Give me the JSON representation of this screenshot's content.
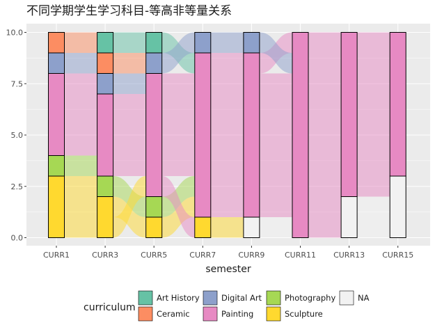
{
  "chart_data": {
    "type": "alluvial",
    "title": "不同学期学生学习科目-等高非等量关系",
    "xlabel": "semester",
    "ylabel": "",
    "ylim": [
      0,
      10
    ],
    "y_ticks": [
      0.0,
      2.5,
      5.0,
      7.5,
      10.0
    ],
    "y_tick_labels": [
      "0.0",
      "2.5",
      "5.0",
      "7.5",
      "10.0"
    ],
    "grid": true,
    "legend_position": "bottom",
    "legend_title": "curriculum",
    "categories": [
      "CURR1",
      "CURR3",
      "CURR5",
      "CURR7",
      "CURR9",
      "CURR11",
      "CURR13",
      "CURR15"
    ],
    "curricula": [
      {
        "name": "Art History",
        "color": "#66C2A5"
      },
      {
        "name": "Ceramic",
        "color": "#FC8D62"
      },
      {
        "name": "Digital Art",
        "color": "#8DA0CB"
      },
      {
        "name": "Painting",
        "color": "#E78AC3"
      },
      {
        "name": "Photography",
        "color": "#A6D854"
      },
      {
        "name": "Sculpture",
        "color": "#FFD92F"
      },
      {
        "name": "NA",
        "color": "#F2F2F2"
      }
    ],
    "stack_order": [
      "Art History",
      "Ceramic",
      "Digital Art",
      "Painting",
      "Photography",
      "Sculpture",
      "NA"
    ],
    "students": [
      [
        "Ceramic",
        "Art History",
        "Art History",
        "Painting",
        "Painting",
        "Painting",
        "Painting",
        "Painting"
      ],
      [
        "Digital Art",
        "Ceramic",
        "Digital Art",
        "Digital Art",
        "Digital Art",
        "Painting",
        "Painting",
        "Painting"
      ],
      [
        "Painting",
        "Digital Art",
        "Painting",
        "Painting",
        "Painting",
        "Painting",
        "Painting",
        "Painting"
      ],
      [
        "Painting",
        "Painting",
        "Painting",
        "Painting",
        "Painting",
        "Painting",
        "Painting",
        "Painting"
      ],
      [
        "Painting",
        "Painting",
        "Painting",
        "Painting",
        "Painting",
        "Painting",
        "Painting",
        "Painting"
      ],
      [
        "Painting",
        "Painting",
        "Painting",
        "Painting",
        "Painting",
        "Painting",
        "Painting",
        "Painting"
      ],
      [
        "Photography",
        "Painting",
        "Painting",
        "Painting",
        "Painting",
        "Painting",
        "Painting",
        "Painting"
      ],
      [
        "Sculpture",
        "Photography",
        "Photography",
        "Painting",
        "Painting",
        "Painting",
        "Painting",
        "NA"
      ],
      [
        "Sculpture",
        "Sculpture",
        "Sculpture",
        "Painting",
        "Painting",
        "Painting",
        "NA",
        "NA"
      ],
      [
        "Sculpture",
        "Sculpture",
        "Painting",
        "Sculpture",
        "NA",
        "Painting",
        "NA",
        "NA"
      ]
    ],
    "totals_per_semester": [
      10,
      10,
      10,
      10,
      10,
      10,
      10,
      10
    ]
  }
}
